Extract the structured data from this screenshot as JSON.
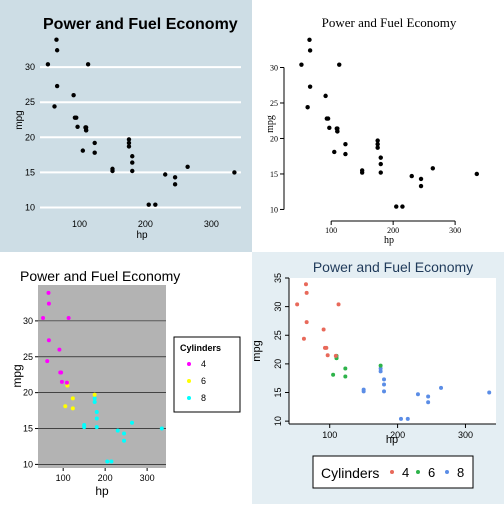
{
  "points": [
    {
      "hp": 110,
      "mpg": 21,
      "cyl": 6
    },
    {
      "hp": 110,
      "mpg": 21,
      "cyl": 6
    },
    {
      "hp": 93,
      "mpg": 22.8,
      "cyl": 4
    },
    {
      "hp": 110,
      "mpg": 21.4,
      "cyl": 6
    },
    {
      "hp": 175,
      "mpg": 18.7,
      "cyl": 8
    },
    {
      "hp": 105,
      "mpg": 18.1,
      "cyl": 6
    },
    {
      "hp": 245,
      "mpg": 14.3,
      "cyl": 8
    },
    {
      "hp": 62,
      "mpg": 24.4,
      "cyl": 4
    },
    {
      "hp": 95,
      "mpg": 22.8,
      "cyl": 4
    },
    {
      "hp": 123,
      "mpg": 19.2,
      "cyl": 6
    },
    {
      "hp": 123,
      "mpg": 17.8,
      "cyl": 6
    },
    {
      "hp": 180,
      "mpg": 16.4,
      "cyl": 8
    },
    {
      "hp": 180,
      "mpg": 17.3,
      "cyl": 8
    },
    {
      "hp": 180,
      "mpg": 15.2,
      "cyl": 8
    },
    {
      "hp": 205,
      "mpg": 10.4,
      "cyl": 8
    },
    {
      "hp": 215,
      "mpg": 10.4,
      "cyl": 8
    },
    {
      "hp": 230,
      "mpg": 14.7,
      "cyl": 8
    },
    {
      "hp": 66,
      "mpg": 32.4,
      "cyl": 4
    },
    {
      "hp": 52,
      "mpg": 30.4,
      "cyl": 4
    },
    {
      "hp": 65,
      "mpg": 33.9,
      "cyl": 4
    },
    {
      "hp": 97,
      "mpg": 21.5,
      "cyl": 4
    },
    {
      "hp": 150,
      "mpg": 15.5,
      "cyl": 8
    },
    {
      "hp": 150,
      "mpg": 15.2,
      "cyl": 8
    },
    {
      "hp": 245,
      "mpg": 13.3,
      "cyl": 8
    },
    {
      "hp": 175,
      "mpg": 19.2,
      "cyl": 8
    },
    {
      "hp": 66,
      "mpg": 27.3,
      "cyl": 4
    },
    {
      "hp": 91,
      "mpg": 26,
      "cyl": 4
    },
    {
      "hp": 113,
      "mpg": 30.4,
      "cyl": 4
    },
    {
      "hp": 264,
      "mpg": 15.8,
      "cyl": 8
    },
    {
      "hp": 175,
      "mpg": 19.7,
      "cyl": 6
    },
    {
      "hp": 335,
      "mpg": 15,
      "cyl": 8
    },
    {
      "hp": 109,
      "mpg": 21.4,
      "cyl": 4
    }
  ],
  "chart_data": [
    {
      "type": "scatter",
      "title": "Power and Fuel Economy",
      "xlabel": "hp",
      "ylabel": "mpg",
      "xlim": [
        40,
        345
      ],
      "ylim": [
        9.5,
        35
      ],
      "xticks": [
        100,
        200,
        300
      ],
      "yticks": [
        10,
        15,
        20,
        25,
        30
      ],
      "grid": "horizontal",
      "background": "#cddde5",
      "point_color": "#000000"
    },
    {
      "type": "scatter",
      "title": "Power and Fuel Economy",
      "xlabel": "hp",
      "ylabel": "mpg",
      "xlim": [
        40,
        345
      ],
      "ylim": [
        9.5,
        35
      ],
      "xticks": [
        100,
        200,
        300
      ],
      "yticks": [
        10,
        15,
        20,
        25,
        30
      ],
      "grid": "none",
      "background": "#ffffff",
      "point_color": "#000000"
    },
    {
      "type": "scatter",
      "title": "Power and Fuel Economy",
      "xlabel": "hp",
      "ylabel": "mpg",
      "xlim": [
        40,
        345
      ],
      "ylim": [
        9.5,
        35
      ],
      "xticks": [
        100,
        200,
        300
      ],
      "yticks": [
        10,
        15,
        20,
        25,
        30
      ],
      "grid": "horizontal",
      "background": "#b3b3b3",
      "legend": {
        "title": "Cylinders",
        "placement": "right",
        "entries": [
          {
            "label": "4",
            "color": "#ff00ff"
          },
          {
            "label": "6",
            "color": "#ffff00"
          },
          {
            "label": "8",
            "color": "#00ffff"
          }
        ]
      }
    },
    {
      "type": "scatter",
      "title": "Power and Fuel Economy",
      "xlabel": "hp",
      "ylabel": "mpg",
      "xlim": [
        40,
        345
      ],
      "ylim": [
        9.5,
        35
      ],
      "xticks": [
        100,
        200,
        300
      ],
      "yticks": [
        10,
        15,
        20,
        25,
        30,
        35
      ],
      "grid": "none",
      "background": "#ffffff",
      "legend": {
        "title": "Cylinders",
        "placement": "bottom",
        "entries": [
          {
            "label": "4",
            "color": "#e8695a"
          },
          {
            "label": "6",
            "color": "#2db34a"
          },
          {
            "label": "8",
            "color": "#5b8de6"
          }
        ]
      }
    }
  ]
}
